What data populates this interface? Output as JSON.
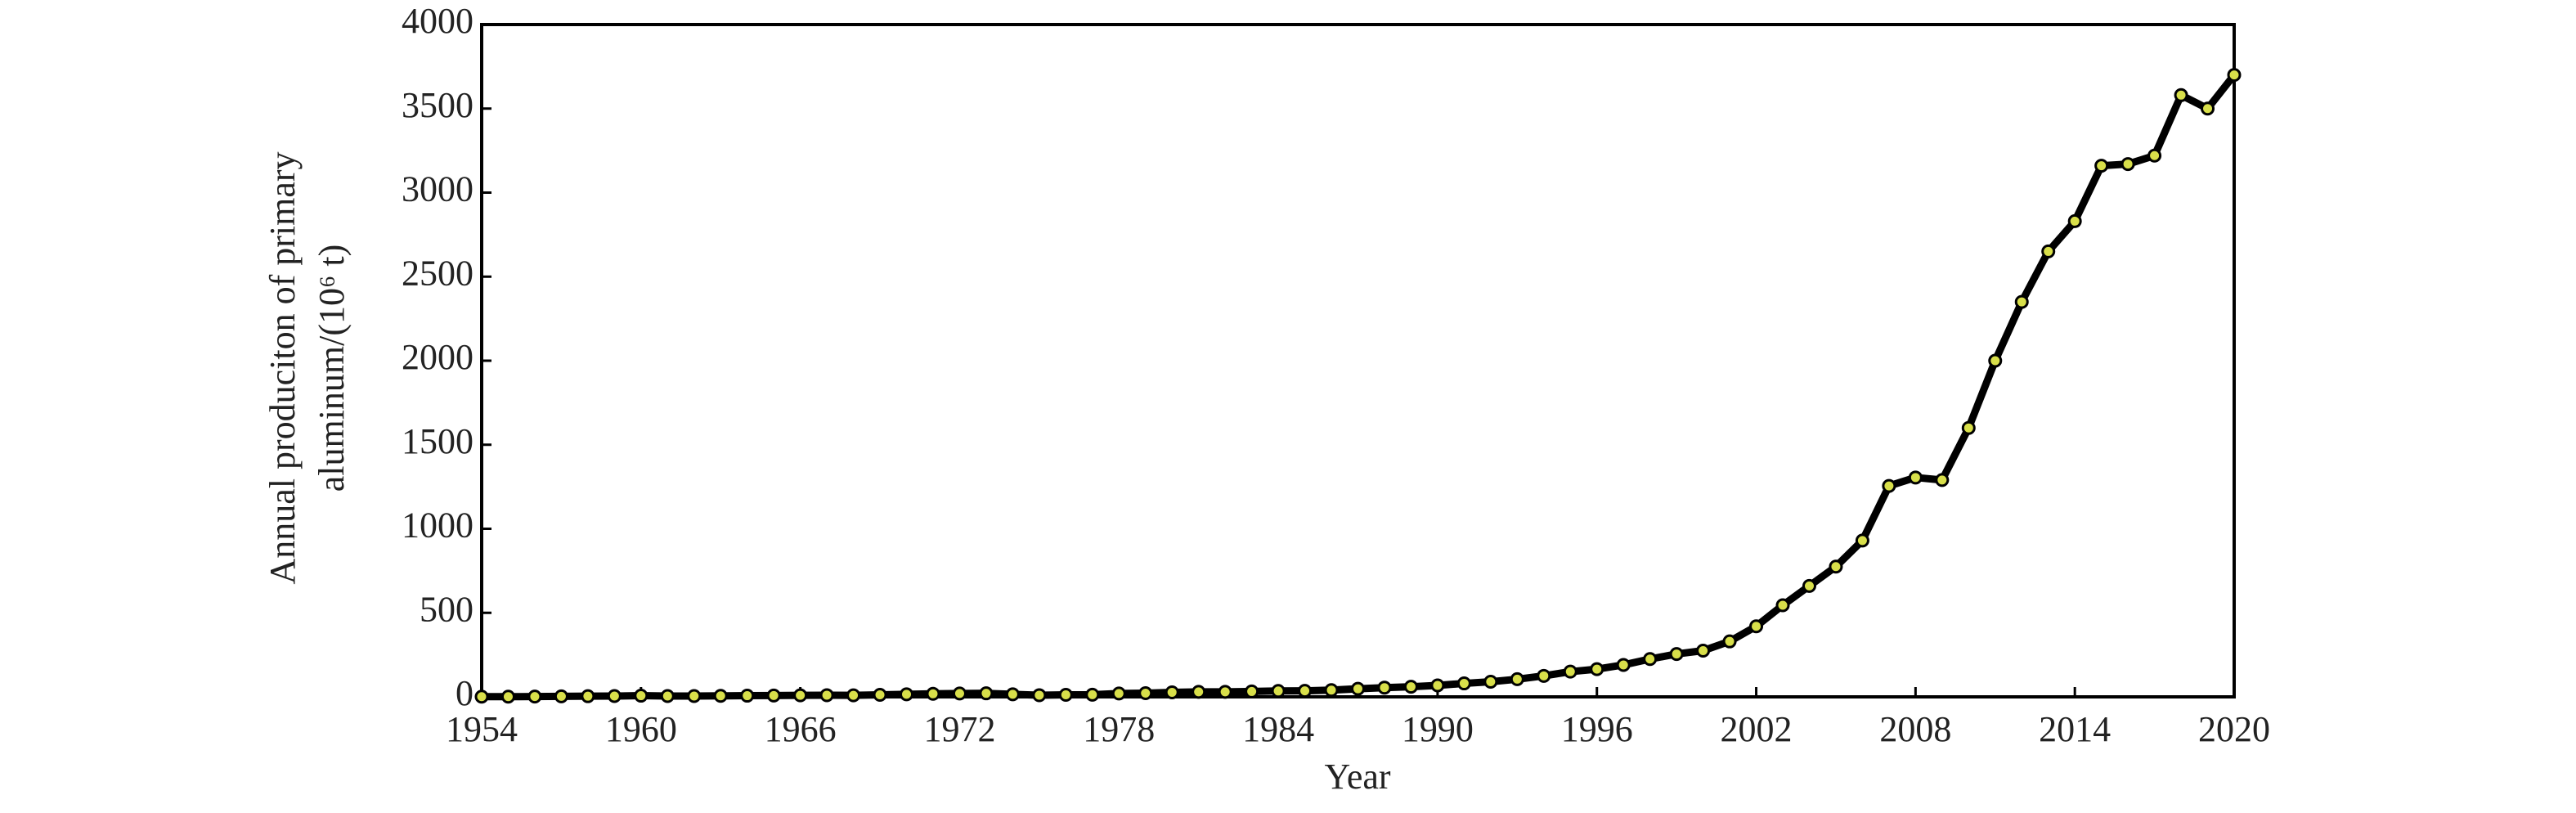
{
  "chart_data": {
    "type": "line",
    "xlabel": "Year",
    "ylabel_lines": [
      "Annual produciton of primary",
      "aluminum/(10⁶ t)"
    ],
    "x": [
      1954,
      1955,
      1956,
      1957,
      1958,
      1959,
      1960,
      1961,
      1962,
      1963,
      1964,
      1965,
      1966,
      1967,
      1968,
      1969,
      1970,
      1971,
      1972,
      1973,
      1974,
      1975,
      1976,
      1977,
      1978,
      1979,
      1980,
      1981,
      1982,
      1983,
      1984,
      1985,
      1986,
      1987,
      1988,
      1989,
      1990,
      1991,
      1992,
      1993,
      1994,
      1995,
      1996,
      1997,
      1998,
      1999,
      2000,
      2001,
      2002,
      2003,
      2004,
      2005,
      2006,
      2007,
      2008,
      2009,
      2010,
      2011,
      2012,
      2013,
      2014,
      2015,
      2016,
      2017,
      2018,
      2019,
      2020
    ],
    "series": [
      {
        "color": "#000000",
        "marker_color": "#d8df4a",
        "values": [
          1,
          1,
          2,
          3,
          4,
          5,
          7,
          5,
          5,
          6,
          7,
          8,
          9,
          10,
          9,
          12,
          15,
          18,
          20,
          21,
          15,
          10,
          12,
          13,
          20,
          22,
          27,
          30,
          30,
          32,
          35,
          36,
          40,
          48,
          55,
          60,
          68,
          80,
          90,
          105,
          125,
          150,
          165,
          190,
          225,
          255,
          275,
          330,
          420,
          545,
          660,
          775,
          930,
          1255,
          1305,
          1290,
          1600,
          2000,
          2350,
          2650,
          2830,
          3160,
          3170,
          3220,
          3580,
          3500,
          3700
        ]
      }
    ],
    "xlim": [
      1954,
      2020
    ],
    "xticks": [
      1954,
      1960,
      1966,
      1972,
      1978,
      1984,
      1990,
      1996,
      2002,
      2008,
      2014,
      2020
    ],
    "ylim": [
      0,
      4000
    ],
    "yticks": [
      0,
      500,
      1000,
      1500,
      2000,
      2500,
      3000,
      3500,
      4000
    ]
  }
}
